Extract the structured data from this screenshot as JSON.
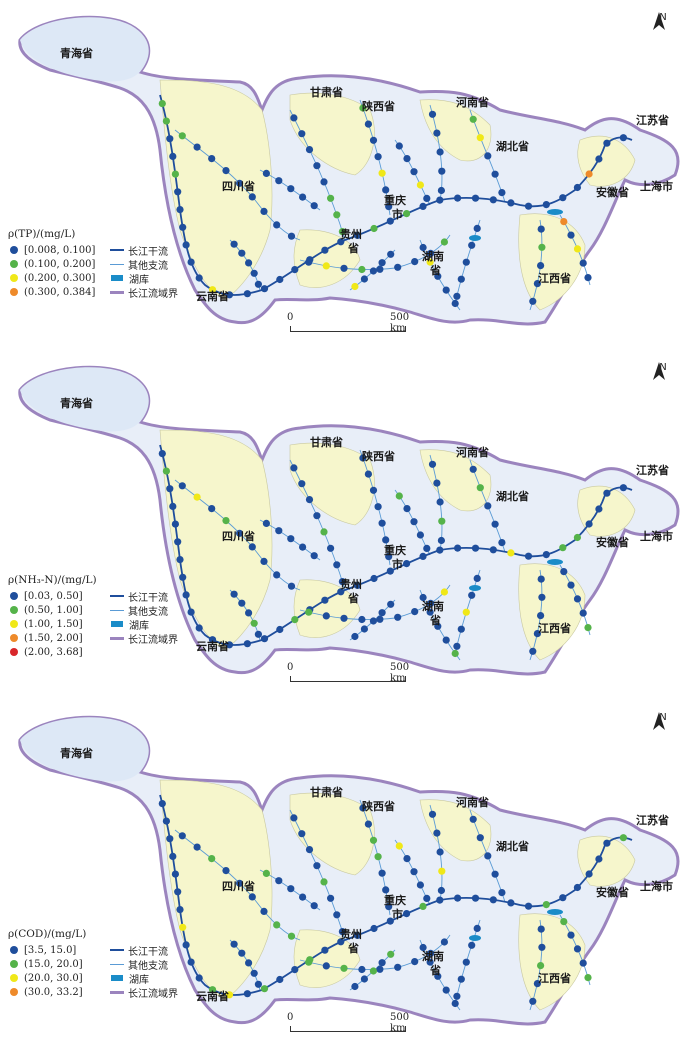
{
  "panels": [
    {
      "legend_title": "ρ(TP)/(mg/L)",
      "classes": [
        {
          "label": "[0.008, 0.100]",
          "color": "#1f4e9c"
        },
        {
          "label": "(0.100, 0.200]",
          "color": "#55b34a"
        },
        {
          "label": "(0.200, 0.300]",
          "color": "#f0e818"
        },
        {
          "label": "(0.300, 0.384]",
          "color": "#ee8a2a"
        }
      ]
    },
    {
      "legend_title": "ρ(NH₃-N)/(mg/L)",
      "classes": [
        {
          "label": "[0.03, 0.50]",
          "color": "#1f4e9c"
        },
        {
          "label": "(0.50, 1.00]",
          "color": "#55b34a"
        },
        {
          "label": "(1.00, 1.50]",
          "color": "#f0e818"
        },
        {
          "label": "(1.50, 2.00]",
          "color": "#ee8a2a"
        },
        {
          "label": "(2.00, 3.68]",
          "color": "#d8262a"
        }
      ]
    },
    {
      "legend_title": "ρ(COD)/(mg/L)",
      "classes": [
        {
          "label": "[3.5, 15.0]",
          "color": "#1f4e9c"
        },
        {
          "label": "(15.0, 20.0]",
          "color": "#55b34a"
        },
        {
          "label": "(20.0, 30.0]",
          "color": "#f0e818"
        },
        {
          "label": "(30.0, 33.2]",
          "color": "#ee8a2a"
        }
      ]
    }
  ],
  "map_legend": {
    "mainstream": "长江干流",
    "tributary": "其他支流",
    "lake": "湖库",
    "boundary": "长江流域界"
  },
  "provinces": {
    "qinghai": "青海省",
    "gansu": "甘肃省",
    "shaanxi": "陕西省",
    "henan": "河南省",
    "jiangsu": "江苏省",
    "hubei": "湖北省",
    "sichuan": "四川省",
    "shanghai": "上海市",
    "anhui": "安徽省",
    "chongqing_1": "重庆",
    "chongqing_2": "市",
    "guizhou_1": "贵州",
    "guizhou_2": "省",
    "hunan_1": "湖南",
    "hunan_2": "省",
    "jiangxi": "江西省",
    "yunnan": "云南省"
  },
  "north": "N",
  "scale": {
    "zero": "0",
    "label": "500 km"
  },
  "colors": {
    "boundary": "#9b84be",
    "basin_fill": "#e8eef8",
    "province_fill": "#f6f6cc",
    "qinghai_fill": "#dde8f6",
    "mainstream": "#1f4e9c",
    "tributary": "#5a9bd5",
    "lake": "#1a8cc8"
  }
}
